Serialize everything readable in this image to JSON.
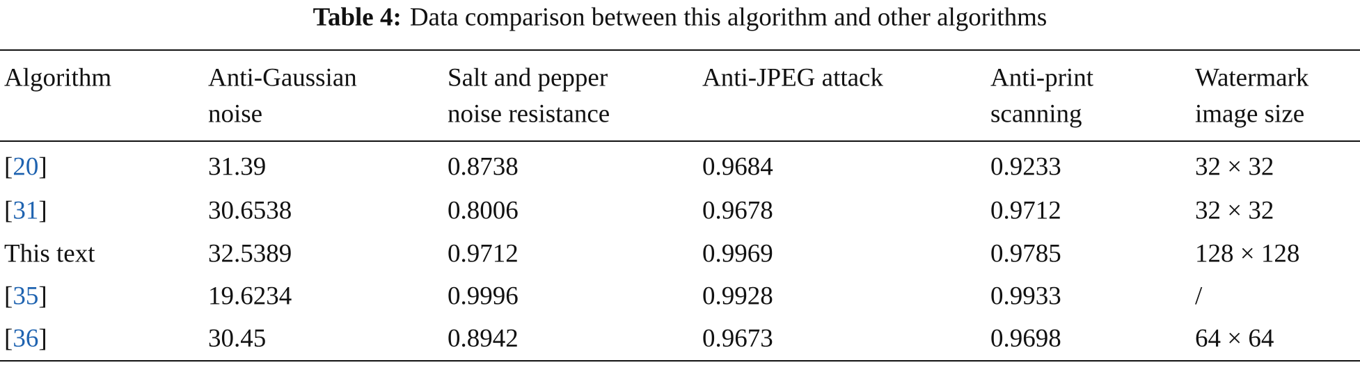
{
  "caption": {
    "label": "Table 4:",
    "text": "Data comparison between this algorithm and other algorithms"
  },
  "table": {
    "header": [
      [
        "Algorithm"
      ],
      [
        "Anti-Gaussian",
        "noise"
      ],
      [
        "Salt and pepper",
        "noise resistance"
      ],
      [
        "Anti-JPEG attack"
      ],
      [
        "Anti-print",
        "scanning"
      ],
      [
        "Watermark",
        "image size"
      ]
    ],
    "rows": [
      [
        [
          "[",
          "20",
          "]"
        ],
        "31.39",
        "0.8738",
        "0.9684",
        "0.9233",
        "32 × 32"
      ],
      [
        [
          "[",
          "31",
          "]"
        ],
        "30.6538",
        "0.8006",
        "0.9678",
        "0.9712",
        "32 × 32"
      ],
      [
        [
          "This text"
        ],
        "32.5389",
        "0.9712",
        "0.9969",
        "0.9785",
        "128 × 128"
      ],
      [
        [
          "[",
          "35",
          "]"
        ],
        "19.6234",
        "0.9996",
        "0.9928",
        "0.9933",
        "/"
      ],
      [
        [
          "[",
          "36",
          "]"
        ],
        "30.45",
        "0.8942",
        "0.9673",
        "0.9698",
        "64 × 64"
      ]
    ]
  }
}
